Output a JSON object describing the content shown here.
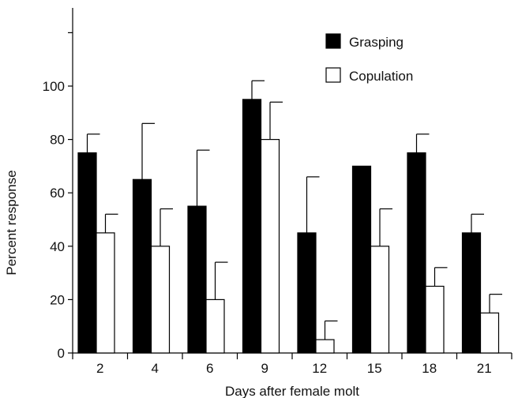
{
  "chart_data": {
    "type": "bar",
    "title": "",
    "xlabel": "Days after female molt",
    "ylabel": "Percent response",
    "categories": [
      "2",
      "4",
      "6",
      "9",
      "12",
      "15",
      "18",
      "21"
    ],
    "ylim": [
      0,
      120
    ],
    "yticks": [
      0,
      20,
      40,
      60,
      80,
      100
    ],
    "grid": false,
    "legend_position": "top-right",
    "series": [
      {
        "name": "Grasping",
        "color": "#000000",
        "values": [
          75,
          65,
          55,
          95,
          45,
          70,
          75,
          45
        ],
        "error_upper": [
          82,
          86,
          76,
          102,
          66,
          null,
          82,
          52
        ]
      },
      {
        "name": "Copulation",
        "color": "#ffffff",
        "values": [
          45,
          40,
          20,
          80,
          5,
          40,
          25,
          15
        ],
        "error_upper": [
          52,
          54,
          34,
          94,
          12,
          54,
          32,
          22
        ]
      }
    ]
  }
}
